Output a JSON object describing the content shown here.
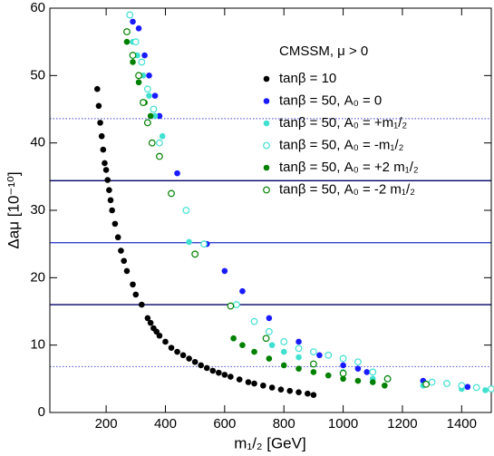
{
  "chart_data": {
    "type": "scatter",
    "x_label": "m₁/₂ [GeV]",
    "y_label": "Δaμ [10⁻¹⁰]",
    "legend_title": "CMSSM, μ > 0",
    "xlim": [
      10,
      1500
    ],
    "ylim": [
      0,
      60
    ],
    "xticks": [
      200,
      400,
      600,
      800,
      1000,
      1200,
      1400
    ],
    "yticks": [
      0,
      10,
      20,
      30,
      40,
      50,
      60
    ],
    "hlines": [
      {
        "value": 43.6,
        "color": "#6666dd",
        "style": "dotted"
      },
      {
        "value": 34.4,
        "color": "#000066",
        "style": "solid"
      },
      {
        "value": 25.2,
        "color": "#3344cc",
        "style": "solid"
      },
      {
        "value": 16.0,
        "color": "#000066",
        "style": "solid"
      },
      {
        "value": 6.8,
        "color": "#6666dd",
        "style": "dotted"
      }
    ],
    "series": [
      {
        "name": "tanβ = 10",
        "color": "#000000",
        "marker": "filled",
        "x": [
          170,
          175,
          180,
          185,
          190,
          195,
          200,
          205,
          210,
          215,
          220,
          230,
          240,
          250,
          260,
          270,
          290,
          300,
          320,
          340,
          350,
          360,
          370,
          380,
          400,
          420,
          440,
          460,
          480,
          500,
          520,
          540,
          560,
          580,
          600,
          620,
          650,
          680,
          700,
          730,
          760,
          790,
          820,
          850,
          880,
          900
        ],
        "values": [
          48,
          45.5,
          43,
          41,
          39,
          37,
          36,
          34.5,
          33,
          31.5,
          30,
          28,
          26,
          24,
          22.5,
          21,
          19,
          17.5,
          16,
          14,
          13.3,
          12.5,
          12,
          11.4,
          10.5,
          9.6,
          9,
          8.5,
          8,
          7.5,
          7,
          6.6,
          6.2,
          5.9,
          5.6,
          5.3,
          4.9,
          4.5,
          4.3,
          4,
          3.7,
          3.4,
          3.2,
          3,
          2.8,
          2.6
        ]
      },
      {
        "name": "tanβ = 50, A₀ = 0",
        "color": "#1a1aff",
        "marker": "filled",
        "x": [
          290,
          310,
          330,
          345,
          365,
          380,
          440,
          540,
          600,
          660,
          750,
          850,
          920,
          1000,
          1050,
          1080,
          1270,
          1420
        ],
        "values": [
          58,
          57,
          53,
          50,
          47,
          44,
          35.5,
          25,
          21,
          18,
          14,
          10.5,
          8.5,
          7,
          6.5,
          6,
          4.7,
          3.8
        ]
      },
      {
        "name": "tanβ = 50, A₀ = +m₁/₂",
        "color": "#40e0d0",
        "marker": "filled",
        "x": [
          290,
          305,
          325,
          345,
          365,
          390,
          480,
          760,
          800,
          850,
          900,
          1000,
          1100,
          1270,
          1400,
          1480
        ],
        "values": [
          55,
          53,
          50,
          47,
          44,
          41,
          25.3,
          10,
          9,
          8.2,
          7.2,
          6,
          5,
          4,
          3.5,
          3.3
        ]
      },
      {
        "name": "tanβ = 50, A₀ = -m₁/₂",
        "color": "#40e0d0",
        "marker": "open",
        "x": [
          280,
          300,
          320,
          340,
          360,
          380,
          470,
          530,
          640,
          700,
          750,
          800,
          850,
          900,
          950,
          1000,
          1050,
          1100,
          1150,
          1300,
          1350,
          1400,
          1450,
          1500
        ],
        "values": [
          59,
          55,
          52,
          48,
          45,
          40,
          30,
          25,
          16,
          13.5,
          12,
          10.5,
          9.5,
          9,
          8.5,
          8,
          7.5,
          6,
          5,
          4.5,
          4.3,
          4,
          3.7,
          3.5
        ]
      },
      {
        "name": "tanβ = 50, A₀ = +2 m₁/₂",
        "color": "#008000",
        "marker": "filled",
        "x": [
          270,
          290,
          310,
          330,
          350,
          380,
          630,
          660,
          700,
          750,
          800,
          850,
          900,
          950,
          1000,
          1050,
          1100,
          1140
        ],
        "values": [
          55,
          52,
          49,
          46,
          44,
          38,
          11,
          10,
          9,
          8,
          7,
          6.5,
          6,
          5.5,
          5,
          4.7,
          4.5,
          4
        ]
      },
      {
        "name": "tanβ = 50, A₀ = -2 m₁/₂",
        "color": "#008000",
        "marker": "open",
        "x": [
          270,
          290,
          310,
          325,
          340,
          355,
          380,
          420,
          500,
          620,
          740,
          900,
          1000,
          1150,
          1280
        ],
        "values": [
          56.5,
          53,
          50,
          46,
          43,
          40,
          38,
          32.5,
          23.5,
          15.8,
          11,
          7.2,
          5.8,
          5,
          4.2
        ]
      }
    ]
  }
}
